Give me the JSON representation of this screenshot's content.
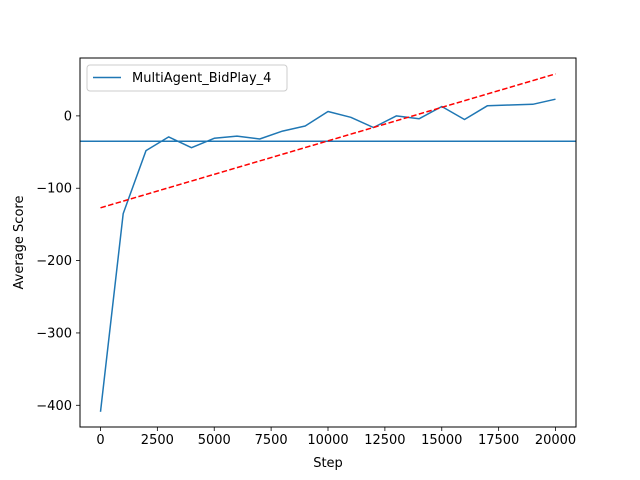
{
  "chart_data": {
    "type": "line",
    "title": "",
    "xlabel": "Step",
    "ylabel": "Average Score",
    "xlim": [
      -900,
      20900
    ],
    "ylim": [
      -430,
      80
    ],
    "xticks": [
      0,
      2500,
      5000,
      7500,
      10000,
      12500,
      15000,
      17500,
      20000
    ],
    "xtick_labels": [
      "0",
      "2500",
      "5000",
      "7500",
      "10000",
      "12500",
      "15000",
      "17500",
      "20000"
    ],
    "yticks": [
      -400,
      -300,
      -200,
      -100,
      0
    ],
    "ytick_labels": [
      "−400",
      "−300",
      "−200",
      "−100",
      "0"
    ],
    "grid": false,
    "legend_position": "top-left",
    "series": [
      {
        "name": "MultiAgent_BidPlay_4",
        "color": "#1f77b4",
        "style": "solid",
        "x": [
          0,
          1000,
          2000,
          3000,
          4000,
          5000,
          6000,
          7000,
          8000,
          9000,
          10000,
          11000,
          12000,
          13000,
          14000,
          15000,
          16000,
          17000,
          18000,
          19000,
          20000
        ],
        "y": [
          -409,
          -135,
          -48,
          -29,
          -44,
          -31,
          -28,
          -32,
          -21,
          -14,
          6,
          -2,
          -16,
          0,
          -4,
          13,
          -5,
          14,
          15,
          16,
          23
        ]
      },
      {
        "color": "#ff0000",
        "style": "dashed",
        "x": [
          0,
          20000
        ],
        "y": [
          -127,
          58
        ]
      }
    ],
    "hlines": [
      {
        "y": -35,
        "color": "#1f77b4"
      }
    ]
  }
}
